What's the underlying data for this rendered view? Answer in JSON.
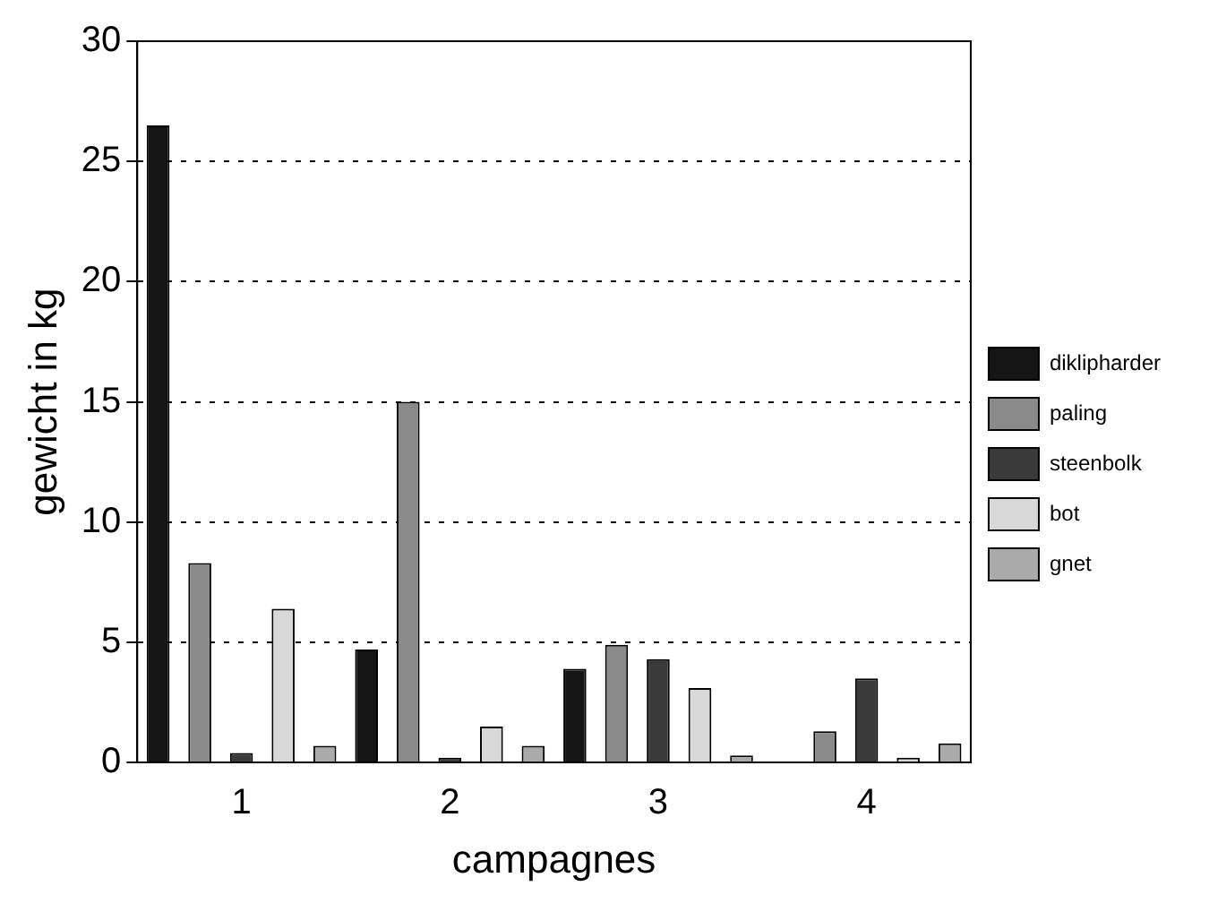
{
  "chart_data": {
    "type": "bar",
    "xlabel": "campagnes",
    "ylabel": "gewicht in kg",
    "categories": [
      "1",
      "2",
      "3",
      "4"
    ],
    "series": [
      {
        "name": "diklipharder",
        "color": "#151515",
        "values": [
          26.5,
          4.7,
          3.9,
          0
        ]
      },
      {
        "name": "paling",
        "color": "#8a8a8a",
        "values": [
          8.3,
          15.0,
          4.9,
          1.3
        ]
      },
      {
        "name": "steenbolk",
        "color": "#3a3a3a",
        "values": [
          0.4,
          0.2,
          4.3,
          3.5
        ]
      },
      {
        "name": "bot",
        "color": "#d8d8d8",
        "values": [
          6.4,
          1.5,
          3.1,
          0.2
        ]
      },
      {
        "name": "gnet",
        "color": "#aaaaaa",
        "values": [
          0.7,
          0.7,
          0.3,
          0.8
        ]
      }
    ],
    "ylim": [
      0,
      30
    ],
    "yticks": [
      0,
      5,
      10,
      15,
      20,
      25,
      30
    ],
    "grid": "y",
    "legend": "right"
  }
}
